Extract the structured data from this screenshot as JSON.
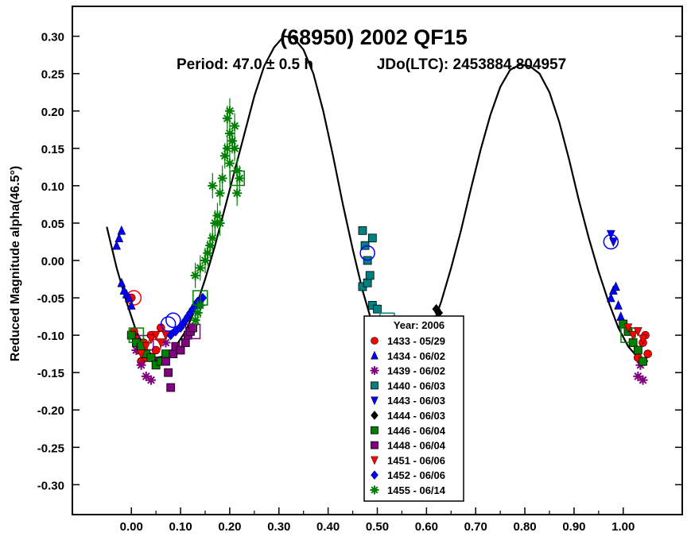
{
  "chart_data": {
    "type": "scatter",
    "title": "(68950) 2002 QF15",
    "subtitle_period": "Period: 47.0 ± 0.5 h",
    "subtitle_epoch": "JDo(LTC): 2453884.804957",
    "xlabel": "",
    "ylabel": "Reduced Magnitude alpha(46.5°)",
    "xlim": [
      -0.12,
      1.12
    ],
    "ylim": [
      0.34,
      -0.34
    ],
    "y_inverted": true,
    "grid": false,
    "legend_position": "bottom-center",
    "x_ticks": [
      "0.00",
      "0.10",
      "0.20",
      "0.30",
      "0.40",
      "0.50",
      "0.60",
      "0.70",
      "0.80",
      "0.90",
      "1.00"
    ],
    "x_tick_values": [
      0,
      0.1,
      0.2,
      0.3,
      0.4,
      0.5,
      0.6,
      0.7,
      0.8,
      0.9,
      1.0
    ],
    "y_ticks": [
      "-0.30",
      "-0.25",
      "-0.20",
      "-0.15",
      "-0.10",
      "-0.05",
      "0.00",
      "0.05",
      "0.10",
      "0.15",
      "0.20",
      "0.25",
      "0.30"
    ],
    "y_tick_values": [
      -0.3,
      -0.25,
      -0.2,
      -0.15,
      -0.1,
      -0.05,
      0,
      0.05,
      0.1,
      0.15,
      0.2,
      0.25,
      0.3
    ],
    "legend_title": "Year: 2006",
    "fit_curve": {
      "color": "#000000",
      "points": [
        [
          -0.05,
          0.045
        ],
        [
          -0.03,
          -0.01
        ],
        [
          -0.01,
          -0.055
        ],
        [
          0.01,
          -0.095
        ],
        [
          0.03,
          -0.12
        ],
        [
          0.05,
          -0.13
        ],
        [
          0.07,
          -0.128
        ],
        [
          0.09,
          -0.115
        ],
        [
          0.11,
          -0.095
        ],
        [
          0.13,
          -0.065
        ],
        [
          0.15,
          -0.025
        ],
        [
          0.17,
          0.02
        ],
        [
          0.19,
          0.07
        ],
        [
          0.21,
          0.12
        ],
        [
          0.23,
          0.17
        ],
        [
          0.25,
          0.22
        ],
        [
          0.27,
          0.26
        ],
        [
          0.29,
          0.285
        ],
        [
          0.31,
          0.3
        ],
        [
          0.33,
          0.298
        ],
        [
          0.35,
          0.282
        ],
        [
          0.37,
          0.25
        ],
        [
          0.39,
          0.2
        ],
        [
          0.41,
          0.14
        ],
        [
          0.43,
          0.075
        ],
        [
          0.45,
          0.015
        ],
        [
          0.47,
          -0.04
        ],
        [
          0.49,
          -0.085
        ],
        [
          0.51,
          -0.115
        ],
        [
          0.53,
          -0.132
        ],
        [
          0.55,
          -0.138
        ],
        [
          0.57,
          -0.133
        ],
        [
          0.59,
          -0.118
        ],
        [
          0.61,
          -0.092
        ],
        [
          0.63,
          -0.055
        ],
        [
          0.65,
          -0.01
        ],
        [
          0.67,
          0.04
        ],
        [
          0.69,
          0.095
        ],
        [
          0.71,
          0.148
        ],
        [
          0.73,
          0.195
        ],
        [
          0.75,
          0.232
        ],
        [
          0.77,
          0.255
        ],
        [
          0.79,
          0.262
        ],
        [
          0.81,
          0.26
        ],
        [
          0.83,
          0.25
        ],
        [
          0.85,
          0.225
        ],
        [
          0.87,
          0.185
        ],
        [
          0.89,
          0.135
        ],
        [
          0.91,
          0.08
        ],
        [
          0.93,
          0.03
        ],
        [
          0.95,
          -0.015
        ],
        [
          0.97,
          -0.055
        ],
        [
          0.99,
          -0.09
        ],
        [
          1.01,
          -0.115
        ],
        [
          1.03,
          -0.13
        ],
        [
          1.05,
          -0.135
        ]
      ]
    },
    "series": [
      {
        "name": "1433 - 05/29",
        "marker": "circle",
        "color": "#ff0000",
        "points": [
          [
            0.0,
            -0.05
          ],
          [
            0.005,
            -0.095
          ],
          [
            0.01,
            -0.105
          ],
          [
            0.015,
            -0.12
          ],
          [
            0.02,
            -0.135
          ],
          [
            0.025,
            -0.11
          ],
          [
            0.03,
            -0.13
          ],
          [
            0.04,
            -0.1
          ],
          [
            0.05,
            -0.12
          ],
          [
            0.06,
            -0.09
          ],
          [
            1.03,
            -0.13
          ],
          [
            1.04,
            -0.11
          ],
          [
            1.045,
            -0.1
          ],
          [
            1.05,
            -0.125
          ]
        ],
        "means": [
          [
            0.005,
            -0.05
          ],
          [
            0.045,
            -0.115
          ]
        ]
      },
      {
        "name": "1434 - 06/02",
        "marker": "triangle-up",
        "color": "#0000ff",
        "points": [
          [
            -0.03,
            0.02
          ],
          [
            -0.025,
            0.03
          ],
          [
            -0.02,
            0.04
          ],
          [
            -0.02,
            -0.03
          ],
          [
            -0.015,
            -0.04
          ],
          [
            -0.01,
            -0.045
          ],
          [
            -0.005,
            -0.05
          ],
          [
            0.0,
            -0.06
          ],
          [
            0.975,
            -0.05
          ],
          [
            0.98,
            -0.04
          ],
          [
            0.985,
            -0.035
          ],
          [
            0.99,
            -0.06
          ],
          [
            0.995,
            -0.075
          ]
        ],
        "means": []
      },
      {
        "name": "1439 - 06/02",
        "marker": "asterisk",
        "color": "#800080",
        "points": [
          [
            0.01,
            -0.12
          ],
          [
            0.02,
            -0.14
          ],
          [
            0.03,
            -0.155
          ],
          [
            0.04,
            -0.16
          ],
          [
            0.05,
            -0.135
          ],
          [
            0.07,
            -0.11
          ],
          [
            1.03,
            -0.155
          ],
          [
            1.04,
            -0.16
          ],
          [
            1.035,
            -0.14
          ]
        ],
        "means": [
          [
            0.03,
            -0.11
          ]
        ]
      },
      {
        "name": "1440 - 06/03",
        "marker": "square",
        "color": "#008080",
        "points": [
          [
            0.47,
            0.04
          ],
          [
            0.47,
            -0.035
          ],
          [
            0.475,
            0.02
          ],
          [
            0.48,
            -0.03
          ],
          [
            0.48,
            0.0
          ],
          [
            0.485,
            -0.02
          ],
          [
            0.49,
            0.03
          ],
          [
            0.49,
            -0.06
          ],
          [
            0.5,
            -0.065
          ],
          [
            0.505,
            -0.09
          ],
          [
            0.51,
            -0.1
          ],
          [
            0.52,
            -0.085
          ],
          [
            0.53,
            -0.1
          ],
          [
            0.54,
            -0.115
          ],
          [
            0.55,
            -0.12
          ],
          [
            0.56,
            -0.13
          ]
        ],
        "means": [
          [
            0.52,
            -0.08
          ]
        ]
      },
      {
        "name": "1443 - 06/03",
        "marker": "triangle-down",
        "color": "#0000ff",
        "points": [
          [
            0.5,
            -0.13
          ],
          [
            0.505,
            -0.14
          ],
          [
            0.51,
            -0.155
          ],
          [
            0.515,
            -0.15
          ],
          [
            0.52,
            -0.16
          ],
          [
            0.525,
            -0.145
          ],
          [
            0.53,
            -0.165
          ],
          [
            0.54,
            -0.17
          ],
          [
            0.55,
            -0.165
          ],
          [
            0.56,
            -0.17
          ],
          [
            0.57,
            -0.15
          ],
          [
            0.58,
            -0.14
          ],
          [
            0.975,
            0.035
          ],
          [
            0.98,
            0.025
          ]
        ],
        "means": [
          [
            0.975,
            0.025
          ],
          [
            0.48,
            0.01
          ]
        ]
      },
      {
        "name": "1444 - 06/03",
        "marker": "diamond",
        "color": "#000000",
        "points": [
          [
            0.56,
            -0.16
          ],
          [
            0.57,
            -0.165
          ],
          [
            0.575,
            -0.155
          ],
          [
            0.58,
            -0.15
          ],
          [
            0.585,
            -0.14
          ],
          [
            0.59,
            -0.13
          ],
          [
            0.595,
            -0.12
          ],
          [
            0.6,
            -0.125
          ],
          [
            0.605,
            -0.1
          ],
          [
            0.61,
            -0.11
          ],
          [
            0.615,
            -0.08
          ],
          [
            0.62,
            -0.065
          ],
          [
            0.625,
            -0.07
          ],
          [
            0.61,
            -0.135
          ],
          [
            0.6,
            -0.145
          ]
        ],
        "means": [
          [
            0.56,
            -0.1
          ],
          [
            0.62,
            -0.1
          ]
        ]
      },
      {
        "name": "1446 - 06/04",
        "marker": "square",
        "color": "#008000",
        "points": [
          [
            0.0,
            -0.1
          ],
          [
            0.01,
            -0.11
          ],
          [
            0.02,
            -0.115
          ],
          [
            0.03,
            -0.125
          ],
          [
            0.04,
            -0.13
          ],
          [
            0.05,
            -0.14
          ],
          [
            0.06,
            -0.135
          ],
          [
            0.07,
            -0.125
          ],
          [
            1.0,
            -0.085
          ],
          [
            1.01,
            -0.095
          ],
          [
            1.02,
            -0.11
          ],
          [
            1.03,
            -0.12
          ],
          [
            1.04,
            -0.135
          ]
        ],
        "means": [
          [
            0.01,
            -0.1
          ],
          [
            1.01,
            -0.1
          ]
        ]
      },
      {
        "name": "1448 - 06/04",
        "marker": "square",
        "color": "#800080",
        "points": [
          [
            0.07,
            -0.135
          ],
          [
            0.075,
            -0.15
          ],
          [
            0.08,
            -0.17
          ],
          [
            0.085,
            -0.125
          ],
          [
            0.09,
            -0.115
          ],
          [
            0.1,
            -0.12
          ],
          [
            0.11,
            -0.11
          ],
          [
            0.115,
            -0.1
          ],
          [
            0.12,
            -0.095
          ],
          [
            0.125,
            -0.09
          ]
        ],
        "means": [
          [
            0.125,
            -0.095
          ]
        ]
      },
      {
        "name": "1451 - 06/06",
        "marker": "triangle-down",
        "color": "#ff0000",
        "points": [
          [
            0.02,
            -0.125
          ],
          [
            0.03,
            -0.115
          ],
          [
            0.04,
            -0.105
          ],
          [
            0.05,
            -0.1
          ],
          [
            0.06,
            -0.11
          ],
          [
            0.07,
            -0.1
          ],
          [
            1.01,
            -0.09
          ],
          [
            1.02,
            -0.1
          ],
          [
            1.03,
            -0.095
          ],
          [
            1.04,
            -0.105
          ]
        ],
        "means": []
      },
      {
        "name": "1452 - 06/06",
        "marker": "diamond",
        "color": "#0000ff",
        "points": [
          [
            0.08,
            -0.1
          ],
          [
            0.09,
            -0.095
          ],
          [
            0.1,
            -0.09
          ],
          [
            0.105,
            -0.085
          ],
          [
            0.11,
            -0.08
          ],
          [
            0.115,
            -0.075
          ],
          [
            0.12,
            -0.07
          ],
          [
            0.125,
            -0.065
          ],
          [
            0.13,
            -0.06
          ],
          [
            0.135,
            -0.055
          ],
          [
            0.14,
            -0.06
          ],
          [
            0.145,
            -0.05
          ]
        ],
        "means": [
          [
            0.075,
            -0.085
          ],
          [
            0.085,
            -0.08
          ]
        ]
      },
      {
        "name": "1455 - 06/14",
        "marker": "asterisk",
        "color": "#008000",
        "points": [
          [
            0.13,
            -0.08
          ],
          [
            0.135,
            -0.07
          ],
          [
            0.14,
            -0.06
          ],
          [
            0.13,
            -0.02
          ],
          [
            0.14,
            -0.01
          ],
          [
            0.15,
            0.0
          ],
          [
            0.155,
            0.01
          ],
          [
            0.16,
            0.02
          ],
          [
            0.165,
            0.03
          ],
          [
            0.17,
            0.05
          ],
          [
            0.175,
            0.06
          ],
          [
            0.165,
            0.1
          ],
          [
            0.18,
            0.09
          ],
          [
            0.185,
            0.11
          ],
          [
            0.19,
            0.14
          ],
          [
            0.195,
            0.15
          ],
          [
            0.2,
            0.13
          ],
          [
            0.2,
            0.17
          ],
          [
            0.205,
            0.16
          ],
          [
            0.21,
            0.18
          ],
          [
            0.215,
            0.12
          ],
          [
            0.22,
            0.11
          ],
          [
            0.195,
            0.19
          ],
          [
            0.2,
            0.2
          ],
          [
            0.21,
            0.15
          ],
          [
            0.215,
            0.09
          ],
          [
            0.18,
            0.05
          ]
        ],
        "means": [
          [
            0.14,
            -0.05
          ],
          [
            0.215,
            0.11
          ]
        ]
      }
    ]
  }
}
